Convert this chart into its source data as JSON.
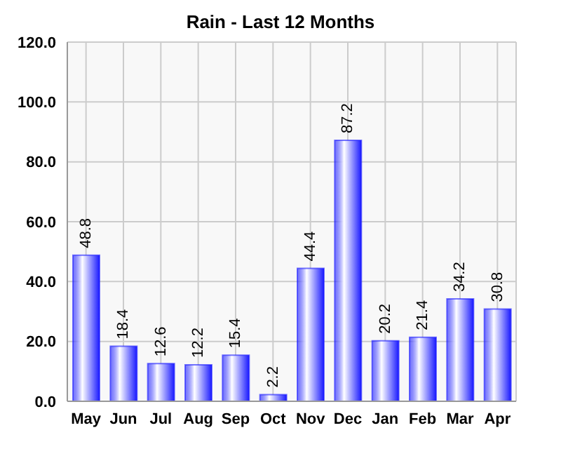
{
  "chart_data": {
    "type": "bar",
    "title": "Rain - Last 12 Months",
    "categories": [
      "May",
      "Jun",
      "Jul",
      "Aug",
      "Sep",
      "Oct",
      "Nov",
      "Dec",
      "Jan",
      "Feb",
      "Mar",
      "Apr"
    ],
    "values": [
      48.8,
      18.4,
      12.6,
      12.2,
      15.4,
      2.2,
      44.4,
      87.2,
      20.2,
      21.4,
      34.2,
      30.8
    ],
    "color": "#1a1aff",
    "ylim": [
      0,
      120
    ],
    "yticks": [
      {
        "value": 0,
        "label": "0.0"
      },
      {
        "value": 20,
        "label": "20.0"
      },
      {
        "value": 40,
        "label": "40.0"
      },
      {
        "value": 60,
        "label": "60.0"
      },
      {
        "value": 80,
        "label": "80.0"
      },
      {
        "value": 100,
        "label": "100.0"
      },
      {
        "value": 120,
        "label": "120.0"
      }
    ],
    "grid": true,
    "data_labels": true
  }
}
